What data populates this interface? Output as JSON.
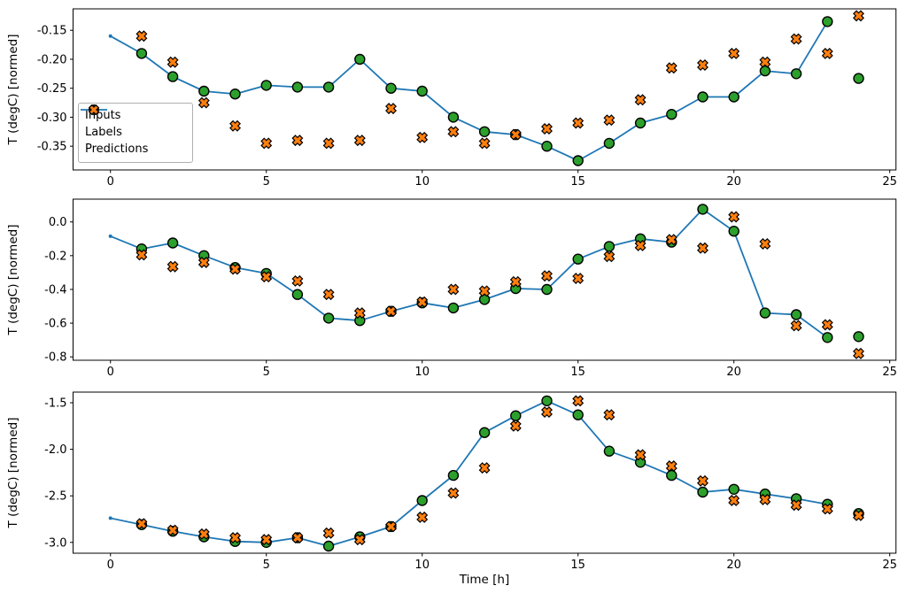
{
  "figure": {
    "background": "#ffffff",
    "xlabel": "Time [h]",
    "ylabel": "T (degC) [normed]",
    "legend": {
      "entries": [
        {
          "label": "Inputs",
          "style": "line-dot",
          "color": "#1f77b4"
        },
        {
          "label": "Labels",
          "style": "scatter-circle",
          "color": "#2ca02c"
        },
        {
          "label": "Predictions",
          "style": "scatter-x",
          "color": "#ff7f0e"
        }
      ]
    },
    "colors": {
      "inputs_line": "#1f77b4",
      "labels_fill": "#2ca02c",
      "predictions_fill": "#ff7f0e",
      "marker_edge": "#000000",
      "spine": "#000000"
    }
  },
  "chart_data": [
    {
      "type": "line",
      "panel": "top",
      "ylabel": "T (degC) [normed]",
      "xlabel": "",
      "grid": false,
      "legend_position": "center-left",
      "xlim": [
        -1.2,
        25.2
      ],
      "ylim": [
        -0.391,
        -0.113
      ],
      "x_ticks": [
        "0",
        "5",
        "10",
        "15",
        "20",
        "25"
      ],
      "y_ticks": [
        "-0.15",
        "-0.20",
        "-0.25",
        "-0.30",
        "-0.35"
      ],
      "series": [
        {
          "name": "Inputs",
          "style": "line-dot",
          "color": "#1f77b4",
          "x": [
            0,
            1,
            2,
            3,
            4,
            5,
            6,
            7,
            8,
            9,
            10,
            11,
            12,
            13,
            14,
            15,
            16,
            17,
            18,
            19,
            20,
            21,
            22,
            23
          ],
          "y": [
            -0.16,
            -0.19,
            -0.23,
            -0.255,
            -0.26,
            -0.245,
            -0.248,
            -0.248,
            -0.2,
            -0.25,
            -0.255,
            -0.3,
            -0.325,
            -0.33,
            -0.35,
            -0.375,
            -0.345,
            -0.31,
            -0.295,
            -0.265,
            -0.265,
            -0.22,
            -0.225,
            -0.135
          ]
        },
        {
          "name": "Labels",
          "style": "scatter-circle",
          "color": "#2ca02c",
          "edge": "#000000",
          "x": [
            1,
            2,
            3,
            4,
            5,
            6,
            7,
            8,
            9,
            10,
            11,
            12,
            13,
            14,
            15,
            16,
            17,
            18,
            19,
            20,
            21,
            22,
            23,
            24
          ],
          "y": [
            -0.19,
            -0.23,
            -0.255,
            -0.26,
            -0.245,
            -0.248,
            -0.248,
            -0.2,
            -0.25,
            -0.255,
            -0.3,
            -0.325,
            -0.33,
            -0.35,
            -0.375,
            -0.345,
            -0.31,
            -0.295,
            -0.265,
            -0.265,
            -0.22,
            -0.225,
            -0.135,
            -0.233
          ]
        },
        {
          "name": "Predictions",
          "style": "scatter-x",
          "color": "#ff7f0e",
          "edge": "#000000",
          "x": [
            1,
            2,
            3,
            4,
            5,
            6,
            7,
            8,
            9,
            10,
            11,
            12,
            13,
            14,
            15,
            16,
            17,
            18,
            19,
            20,
            21,
            22,
            23,
            24
          ],
          "y": [
            -0.16,
            -0.205,
            -0.275,
            -0.315,
            -0.345,
            -0.34,
            -0.345,
            -0.34,
            -0.285,
            -0.335,
            -0.325,
            -0.345,
            -0.33,
            -0.32,
            -0.31,
            -0.305,
            -0.27,
            -0.215,
            -0.21,
            -0.19,
            -0.205,
            -0.165,
            -0.19,
            -0.125
          ]
        }
      ]
    },
    {
      "type": "line",
      "panel": "middle",
      "ylabel": "T (degC) [normed]",
      "xlabel": "",
      "grid": false,
      "xlim": [
        -1.2,
        25.2
      ],
      "ylim": [
        -0.82,
        0.135
      ],
      "x_ticks": [
        "0",
        "5",
        "10",
        "15",
        "20",
        "25"
      ],
      "y_ticks": [
        "0.0",
        "-0.2",
        "-0.4",
        "-0.6",
        "-0.8"
      ],
      "series": [
        {
          "name": "Inputs",
          "style": "line-dot",
          "color": "#1f77b4",
          "x": [
            0,
            1,
            2,
            3,
            4,
            5,
            6,
            7,
            8,
            9,
            10,
            11,
            12,
            13,
            14,
            15,
            16,
            17,
            18,
            19,
            20,
            21,
            22,
            23
          ],
          "y": [
            -0.085,
            -0.16,
            -0.125,
            -0.2,
            -0.27,
            -0.305,
            -0.43,
            -0.57,
            -0.585,
            -0.53,
            -0.48,
            -0.51,
            -0.46,
            -0.395,
            -0.4,
            -0.22,
            -0.145,
            -0.1,
            -0.12,
            0.075,
            -0.055,
            -0.54,
            -0.55,
            -0.685
          ]
        },
        {
          "name": "Labels",
          "style": "scatter-circle",
          "color": "#2ca02c",
          "edge": "#000000",
          "x": [
            1,
            2,
            3,
            4,
            5,
            6,
            7,
            8,
            9,
            10,
            11,
            12,
            13,
            14,
            15,
            16,
            17,
            18,
            19,
            20,
            21,
            22,
            23,
            24
          ],
          "y": [
            -0.16,
            -0.125,
            -0.2,
            -0.27,
            -0.305,
            -0.43,
            -0.57,
            -0.585,
            -0.53,
            -0.48,
            -0.51,
            -0.46,
            -0.395,
            -0.4,
            -0.22,
            -0.145,
            -0.1,
            -0.12,
            0.075,
            -0.055,
            -0.54,
            -0.55,
            -0.685,
            -0.68
          ]
        },
        {
          "name": "Predictions",
          "style": "scatter-x",
          "color": "#ff7f0e",
          "edge": "#000000",
          "x": [
            1,
            2,
            3,
            4,
            5,
            6,
            7,
            8,
            9,
            10,
            11,
            12,
            13,
            14,
            15,
            16,
            17,
            18,
            19,
            20,
            21,
            22,
            23,
            24
          ],
          "y": [
            -0.195,
            -0.265,
            -0.24,
            -0.28,
            -0.325,
            -0.35,
            -0.43,
            -0.54,
            -0.53,
            -0.475,
            -0.4,
            -0.41,
            -0.355,
            -0.32,
            -0.335,
            -0.205,
            -0.14,
            -0.105,
            -0.155,
            0.03,
            -0.13,
            -0.615,
            -0.61,
            -0.78
          ]
        }
      ]
    },
    {
      "type": "line",
      "panel": "bottom",
      "ylabel": "T (degC) [normed]",
      "xlabel": "Time [h]",
      "grid": false,
      "xlim": [
        -1.2,
        25.2
      ],
      "ylim": [
        -3.116,
        -1.386
      ],
      "x_ticks": [
        "0",
        "5",
        "10",
        "15",
        "20",
        "25"
      ],
      "y_ticks": [
        "-1.5",
        "-2.0",
        "-2.5",
        "-3.0"
      ],
      "series": [
        {
          "name": "Inputs",
          "style": "line-dot",
          "color": "#1f77b4",
          "x": [
            0,
            1,
            2,
            3,
            4,
            5,
            6,
            7,
            8,
            9,
            10,
            11,
            12,
            13,
            14,
            15,
            16,
            17,
            18,
            19,
            20,
            21,
            22,
            23
          ],
          "y": [
            -2.74,
            -2.81,
            -2.88,
            -2.94,
            -2.99,
            -3.0,
            -2.95,
            -3.04,
            -2.94,
            -2.83,
            -2.55,
            -2.28,
            -1.82,
            -1.64,
            -1.48,
            -1.63,
            -2.02,
            -2.14,
            -2.28,
            -2.46,
            -2.43,
            -2.48,
            -2.53,
            -2.59
          ]
        },
        {
          "name": "Labels",
          "style": "scatter-circle",
          "color": "#2ca02c",
          "edge": "#000000",
          "x": [
            1,
            2,
            3,
            4,
            5,
            6,
            7,
            8,
            9,
            10,
            11,
            12,
            13,
            14,
            15,
            16,
            17,
            18,
            19,
            20,
            21,
            22,
            23,
            24
          ],
          "y": [
            -2.81,
            -2.88,
            -2.94,
            -2.99,
            -3.0,
            -2.95,
            -3.04,
            -2.94,
            -2.83,
            -2.55,
            -2.28,
            -1.82,
            -1.64,
            -1.48,
            -1.63,
            -2.02,
            -2.14,
            -2.28,
            -2.46,
            -2.43,
            -2.48,
            -2.53,
            -2.59,
            -2.69
          ]
        },
        {
          "name": "Predictions",
          "style": "scatter-x",
          "color": "#ff7f0e",
          "edge": "#000000",
          "x": [
            1,
            2,
            3,
            4,
            5,
            6,
            7,
            8,
            9,
            10,
            11,
            12,
            13,
            14,
            15,
            16,
            17,
            18,
            19,
            20,
            21,
            22,
            23,
            24
          ],
          "y": [
            -2.8,
            -2.87,
            -2.91,
            -2.95,
            -2.97,
            -2.95,
            -2.9,
            -2.97,
            -2.83,
            -2.73,
            -2.47,
            -2.2,
            -1.75,
            -1.6,
            -1.48,
            -1.63,
            -2.06,
            -2.18,
            -2.34,
            -2.55,
            -2.54,
            -2.6,
            -2.64,
            -2.71
          ]
        }
      ]
    }
  ]
}
